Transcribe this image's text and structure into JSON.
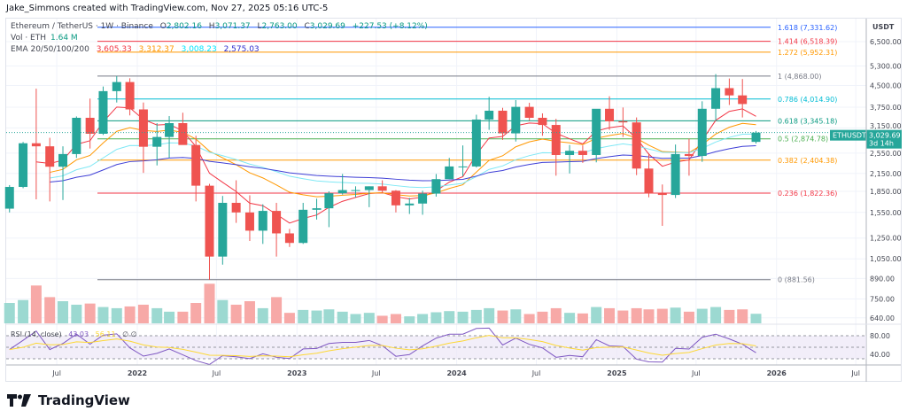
{
  "header": {
    "credit": "Jake_Simmons created with TradingView.com, Nov 27, 2025 05:16 UTC-5"
  },
  "legend": {
    "symbol": "Ethereum / TetherUS · 1W · Binance",
    "o_label": "O",
    "o": "2,802.16",
    "h_label": "H",
    "h": "3,071.37",
    "l_label": "L",
    "l": "2,763.00",
    "c_label": "C",
    "c": "3,029.69",
    "change": "+227.53 (+8.12%)",
    "vol_label": "Vol · ETH",
    "vol": "1.64 M",
    "ema_label": "EMA 20/50/100/200",
    "ema": [
      {
        "value": "3,605.33",
        "color": "#f23645"
      },
      {
        "value": "3,312.37",
        "color": "#ff9800"
      },
      {
        "value": "3,008.23",
        "color": "#00e5ff"
      },
      {
        "value": "2,575.03",
        "color": "#2e2ecf"
      }
    ],
    "rsi_label": "RSI (14, close)",
    "rsi": "43.03",
    "rsi_ma": "56.11",
    "rsi_extra": "∅ ∅"
  },
  "price_axis": {
    "unit": "USDT",
    "ticks": [
      "6,500.00",
      "5,300.00",
      "4,500.00",
      "3,750.00",
      "3,150.00",
      "2,550.00",
      "2,150.00",
      "1,850.00",
      "1,550.00",
      "1,250.00",
      "1,050.00",
      "890.00",
      "750.00",
      "640.00"
    ],
    "rsi_ticks": [
      "80.00",
      "40.00"
    ]
  },
  "last_price": {
    "symbol": "ETHUSDT",
    "price": "3,029.69",
    "countdown": "3d 14h",
    "color": "#26a69a"
  },
  "time_axis": [
    "Jul",
    "2022",
    "Jul",
    "2023",
    "Jul",
    "2024",
    "Jul",
    "2025",
    "Jul",
    "2026",
    "Jul"
  ],
  "fib_levels": [
    {
      "label": "1.618 (7,331.62)",
      "value": 7331.62,
      "color": "#2962ff"
    },
    {
      "label": "1.414 (6,518.39)",
      "value": 6518.39,
      "color": "#f23645"
    },
    {
      "label": "1.272 (5,952.31)",
      "value": 5952.31,
      "color": "#ff9800"
    },
    {
      "label": "1 (4,868.00)",
      "value": 4868,
      "color": "#787b86"
    },
    {
      "label": "0.786 (4,014.90)",
      "value": 4014.9,
      "color": "#00bcd4"
    },
    {
      "label": "0.618 (3,345.18)",
      "value": 3345.18,
      "color": "#089981"
    },
    {
      "label": "0.5 (2,874.78)",
      "value": 2874.78,
      "color": "#4caf50"
    },
    {
      "label": "0.382 (2,404.38)",
      "value": 2404.38,
      "color": "#ff9800"
    },
    {
      "label": "0.236 (1,822.36)",
      "value": 1822.36,
      "color": "#f23645"
    },
    {
      "label": "0 (881.56)",
      "value": 881.56,
      "color": "#787b86"
    }
  ],
  "logo": "TradingView",
  "chart_data": {
    "type": "candlestick",
    "scale": "log",
    "ylim": [
      620,
      7600
    ],
    "up_color": "#26a69a",
    "down_color": "#ef5350",
    "start": "2021-03",
    "interval": "month (approximated from weekly candles)",
    "ohlc": [
      [
        1600,
        1950,
        1550,
        1920
      ],
      [
        1920,
        2800,
        1900,
        2770
      ],
      [
        2770,
        4380,
        1730,
        2700
      ],
      [
        2700,
        2900,
        1700,
        2275
      ],
      [
        2275,
        2700,
        1720,
        2530
      ],
      [
        2530,
        3470,
        2450,
        3430
      ],
      [
        3430,
        4030,
        2650,
        3000
      ],
      [
        3000,
        4460,
        2970,
        4290
      ],
      [
        4290,
        4870,
        3900,
        4630
      ],
      [
        4630,
        4780,
        3500,
        3680
      ],
      [
        3680,
        3900,
        2160,
        2690
      ],
      [
        2690,
        3280,
        2300,
        2920
      ],
      [
        2920,
        3480,
        2450,
        3280
      ],
      [
        3280,
        3580,
        2770,
        2730
      ],
      [
        2730,
        2950,
        1700,
        1940
      ],
      [
        1940,
        1970,
        880,
        1070
      ],
      [
        1070,
        1780,
        1000,
        1680
      ],
      [
        1680,
        2030,
        1420,
        1550
      ],
      [
        1550,
        1790,
        1220,
        1330
      ],
      [
        1330,
        1660,
        1190,
        1570
      ],
      [
        1570,
        1680,
        1070,
        1300
      ],
      [
        1300,
        1350,
        1160,
        1200
      ],
      [
        1200,
        1680,
        1190,
        1585
      ],
      [
        1585,
        1740,
        1460,
        1605
      ],
      [
        1605,
        1850,
        1370,
        1820
      ],
      [
        1820,
        2140,
        1800,
        1870
      ],
      [
        1870,
        1930,
        1760,
        1870
      ],
      [
        1870,
        1930,
        1620,
        1930
      ],
      [
        1930,
        2030,
        1820,
        1860
      ],
      [
        1860,
        1870,
        1550,
        1645
      ],
      [
        1645,
        1750,
        1530,
        1670
      ],
      [
        1670,
        1860,
        1520,
        1815
      ],
      [
        1815,
        2140,
        1770,
        2050
      ],
      [
        2050,
        2450,
        2050,
        2280
      ],
      [
        2280,
        2720,
        2100,
        2280
      ],
      [
        2280,
        3520,
        2260,
        3380
      ],
      [
        3380,
        4090,
        3100,
        3640
      ],
      [
        3640,
        3730,
        2850,
        3010
      ],
      [
        3010,
        3980,
        2810,
        3760
      ],
      [
        3760,
        3890,
        3350,
        3430
      ],
      [
        3430,
        3560,
        2950,
        3230
      ],
      [
        3230,
        3400,
        2110,
        2510
      ],
      [
        2510,
        2730,
        2150,
        2600
      ],
      [
        2600,
        2720,
        2350,
        2510
      ],
      [
        2510,
        3690,
        2360,
        3700
      ],
      [
        3700,
        4110,
        3100,
        3330
      ],
      [
        3330,
        3740,
        2920,
        3300
      ],
      [
        3300,
        3440,
        2120,
        2240
      ],
      [
        2240,
        2550,
        1760,
        1820
      ],
      [
        1820,
        1960,
        1385,
        1795
      ],
      [
        1795,
        2740,
        1750,
        2530
      ],
      [
        2530,
        2880,
        2110,
        2490
      ],
      [
        2490,
        3940,
        2370,
        3700
      ],
      [
        3700,
        4950,
        3350,
        4400
      ],
      [
        4400,
        4770,
        3820,
        4140
      ],
      [
        4140,
        4750,
        3440,
        3850
      ],
      [
        2802.16,
        3071.37,
        2763,
        3029.69
      ]
    ],
    "volume_m": [
      3.5,
      4.0,
      6.5,
      4.5,
      3.8,
      3.2,
      3.4,
      2.8,
      2.6,
      2.9,
      3.2,
      2.6,
      2.0,
      2.0,
      3.5,
      6.8,
      4.0,
      3.2,
      3.8,
      2.6,
      4.5,
      1.8,
      2.3,
      2.2,
      2.4,
      2.0,
      1.6,
      1.8,
      1.3,
      1.6,
      1.2,
      1.6,
      1.9,
      2.1,
      2.0,
      2.3,
      2.6,
      2.2,
      2.4,
      1.6,
      2.0,
      2.6,
      1.8,
      1.7,
      2.8,
      2.6,
      2.2,
      2.6,
      2.4,
      2.5,
      2.7,
      2.0,
      2.5,
      2.8,
      2.3,
      2.4,
      1.64
    ]
  }
}
